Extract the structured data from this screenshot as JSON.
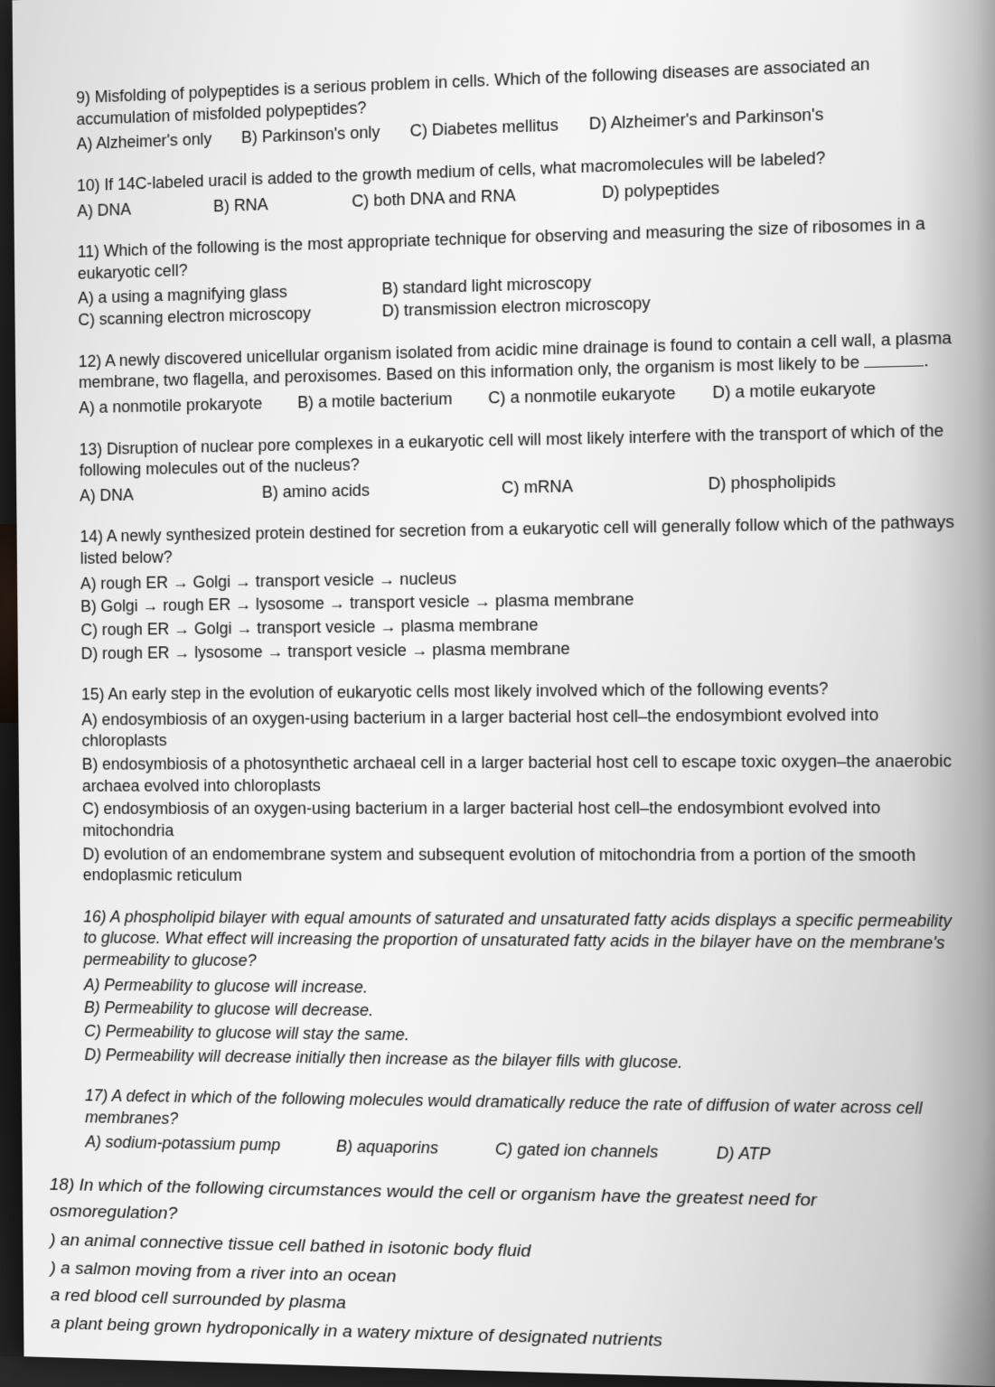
{
  "page": {
    "background_gradient": [
      "#2a2a2a",
      "#1a1a1a",
      "#3a3a3a"
    ],
    "paper_gradient": [
      "#d8d8d8",
      "#ececec",
      "#f5f5f5",
      "#e8e8e8",
      "#c8c8c8",
      "#888888"
    ],
    "text_color": "#1a1a1a",
    "font_family": "Arial",
    "base_font_size_pt": 13
  },
  "questions": [
    {
      "num": "9)",
      "stem": "Misfolding of polypeptides is a serious problem in cells. Which of the following diseases are associated an accumulation of misfolded polypeptides?",
      "opts": [
        "A) Alzheimer's only",
        "B) Parkinson's only",
        "C) Diabetes mellitus",
        "D) Alzheimer's and Parkinson's"
      ],
      "layout": "row"
    },
    {
      "num": "10)",
      "stem": "If 14C-labeled uracil is added to the growth medium of cells, what macromolecules will be labeled?",
      "opts": [
        "A) DNA",
        "B) RNA",
        "C) both DNA and RNA",
        "D) polypeptides"
      ],
      "layout": "row"
    },
    {
      "num": "11)",
      "stem": "Which of the following is the most appropriate technique for observing and measuring the size of ribosomes in a eukaryotic cell?",
      "opts": [
        "A) a using a magnifying glass",
        "B) standard light microscopy",
        "C) scanning electron microscopy",
        "D) transmission electron microscopy"
      ],
      "layout": "2x2"
    },
    {
      "num": "12)",
      "stem_pre": "A newly discovered unicellular organism isolated from acidic mine drainage is found to contain a cell wall, a plasma membrane, two flagella, and peroxisomes. Based on this information only, the organism is most likely to be ",
      "stem_post": ".",
      "opts": [
        "A) a nonmotile prokaryote",
        "B) a motile bacterium",
        "C) a nonmotile eukaryote",
        "D) a motile eukaryote"
      ],
      "layout": "row"
    },
    {
      "num": "13)",
      "stem": "Disruption of nuclear pore complexes in a eukaryotic cell will most likely interfere with the transport of which of the following molecules out of the nucleus?",
      "opts": [
        "A) DNA",
        "B) amino acids",
        "C) mRNA",
        "D) phospholipids"
      ],
      "layout": "row"
    },
    {
      "num": "14)",
      "stem": "A newly synthesized protein destined for secretion from a eukaryotic cell will generally follow which of the pathways listed below?",
      "opts": [
        "A) rough ER → Golgi → transport vesicle → nucleus",
        "B) Golgi → rough ER → lysosome → transport vesicle → plasma membrane",
        "C) rough ER → Golgi → transport vesicle → plasma membrane",
        "D) rough ER → lysosome → transport vesicle → plasma membrane"
      ],
      "layout": "col"
    },
    {
      "num": "15)",
      "stem": "An early step in the evolution of eukaryotic cells most likely involved which of the following events?",
      "opts": [
        "A) endosymbiosis of an oxygen-using bacterium in a larger bacterial host cell–the endosymbiont evolved into chloroplasts",
        "B) endosymbiosis of a photosynthetic archaeal cell in a larger bacterial host cell to escape toxic oxygen–the anaerobic archaea evolved into chloroplasts",
        "C) endosymbiosis of an oxygen-using bacterium in a larger bacterial host cell–the endosymbiont evolved into mitochondria",
        "D) evolution of an endomembrane system and subsequent evolution of mitochondria from a portion of the smooth endoplasmic reticulum"
      ],
      "layout": "col"
    },
    {
      "num": "16)",
      "stem": "A phospholipid bilayer with equal amounts of saturated and unsaturated fatty acids displays a specific permeability to glucose. What effect will increasing the proportion of unsaturated fatty acids in the bilayer have on the membrane's permeability to glucose?",
      "opts": [
        "A) Permeability to glucose will increase.",
        "B) Permeability to glucose will decrease.",
        "C) Permeability to glucose will stay the same.",
        "D) Permeability will decrease initially then increase as the bilayer fills with glucose."
      ],
      "layout": "col",
      "italic": true
    },
    {
      "num": "17)",
      "stem": "A defect in which of the following molecules would dramatically reduce the rate of diffusion of water across cell membranes?",
      "opts": [
        "A) sodium-potassium pump",
        "B) aquaporins",
        "C) gated ion channels",
        "D) ATP"
      ],
      "layout": "row",
      "italic": true
    },
    {
      "num": "18)",
      "stem": "In which of the following circumstances would the cell or organism have the greatest need for osmoregulation?",
      "opts": [
        ") an animal connective tissue cell bathed in isotonic body fluid",
        ") a salmon moving from a river into an ocean",
        " a red blood cell surrounded by plasma",
        " a plant being grown hydroponically in a watery mixture of designated nutrients"
      ],
      "layout": "col",
      "italic": true,
      "large": true
    }
  ]
}
